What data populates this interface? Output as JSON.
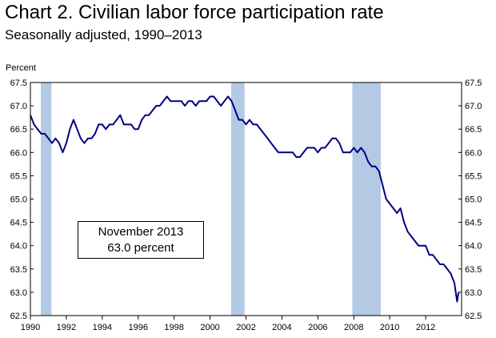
{
  "chart_data": {
    "type": "line",
    "title": "Chart 2.  Civilian labor force participation rate",
    "subtitle": "Seasonally adjusted, 1990–2013",
    "ylabel": "Percent",
    "xlim": [
      1990.0,
      2014.0
    ],
    "ylim": [
      62.5,
      67.5
    ],
    "y_ticks": [
      "67.5",
      "67.0",
      "66.5",
      "66.0",
      "65.5",
      "65.0",
      "64.5",
      "64.0",
      "63.5",
      "63.0",
      "62.5"
    ],
    "x_ticks": [
      "1990",
      "1992",
      "1994",
      "1996",
      "1998",
      "2000",
      "2002",
      "2004",
      "2006",
      "2008",
      "2010",
      "2012"
    ],
    "recessions": [
      [
        1990.58,
        1991.17
      ],
      [
        2001.17,
        2001.92
      ],
      [
        2007.92,
        2009.5
      ]
    ],
    "annotation": {
      "line1": "November 2013",
      "line2": "63.0 percent"
    },
    "series": [
      {
        "name": "Civilian labor force participation rate",
        "color": "#000080",
        "x": [
          1990.0,
          1990.2,
          1990.4,
          1990.6,
          1990.8,
          1991.0,
          1991.2,
          1991.4,
          1991.6,
          1991.8,
          1992.0,
          1992.2,
          1992.4,
          1992.6,
          1992.8,
          1993.0,
          1993.2,
          1993.4,
          1993.6,
          1993.8,
          1994.0,
          1994.2,
          1994.4,
          1994.6,
          1994.8,
          1995.0,
          1995.2,
          1995.4,
          1995.6,
          1995.8,
          1996.0,
          1996.2,
          1996.4,
          1996.6,
          1996.8,
          1997.0,
          1997.2,
          1997.4,
          1997.6,
          1997.8,
          1998.0,
          1998.2,
          1998.4,
          1998.6,
          1998.8,
          1999.0,
          1999.2,
          1999.4,
          1999.6,
          1999.8,
          2000.0,
          2000.2,
          2000.4,
          2000.6,
          2000.8,
          2001.0,
          2001.2,
          2001.4,
          2001.6,
          2001.8,
          2002.0,
          2002.2,
          2002.4,
          2002.6,
          2002.8,
          2003.0,
          2003.2,
          2003.4,
          2003.6,
          2003.8,
          2004.0,
          2004.2,
          2004.4,
          2004.6,
          2004.8,
          2005.0,
          2005.2,
          2005.4,
          2005.6,
          2005.8,
          2006.0,
          2006.2,
          2006.4,
          2006.6,
          2006.8,
          2007.0,
          2007.2,
          2007.4,
          2007.6,
          2007.8,
          2008.0,
          2008.2,
          2008.4,
          2008.6,
          2008.8,
          2009.0,
          2009.2,
          2009.4,
          2009.6,
          2009.8,
          2010.0,
          2010.2,
          2010.4,
          2010.6,
          2010.8,
          2011.0,
          2011.2,
          2011.4,
          2011.6,
          2011.8,
          2012.0,
          2012.2,
          2012.4,
          2012.6,
          2012.8,
          2013.0,
          2013.2,
          2013.4,
          2013.6,
          2013.75,
          2013.83
        ],
        "values": [
          66.8,
          66.6,
          66.5,
          66.4,
          66.4,
          66.3,
          66.2,
          66.3,
          66.2,
          66.0,
          66.2,
          66.5,
          66.7,
          66.5,
          66.3,
          66.2,
          66.3,
          66.3,
          66.4,
          66.6,
          66.6,
          66.5,
          66.6,
          66.6,
          66.7,
          66.8,
          66.6,
          66.6,
          66.6,
          66.5,
          66.5,
          66.7,
          66.8,
          66.8,
          66.9,
          67.0,
          67.0,
          67.1,
          67.2,
          67.1,
          67.1,
          67.1,
          67.1,
          67.0,
          67.1,
          67.1,
          67.0,
          67.1,
          67.1,
          67.1,
          67.2,
          67.2,
          67.1,
          67.0,
          67.1,
          67.2,
          67.1,
          66.9,
          66.7,
          66.7,
          66.6,
          66.7,
          66.6,
          66.6,
          66.5,
          66.4,
          66.3,
          66.2,
          66.1,
          66.0,
          66.0,
          66.0,
          66.0,
          66.0,
          65.9,
          65.9,
          66.0,
          66.1,
          66.1,
          66.1,
          66.0,
          66.1,
          66.1,
          66.2,
          66.3,
          66.3,
          66.2,
          66.0,
          66.0,
          66.0,
          66.1,
          66.0,
          66.1,
          66.0,
          65.8,
          65.7,
          65.7,
          65.6,
          65.3,
          65.0,
          64.9,
          64.8,
          64.7,
          64.8,
          64.5,
          64.3,
          64.2,
          64.1,
          64.0,
          64.0,
          64.0,
          63.8,
          63.8,
          63.7,
          63.6,
          63.6,
          63.5,
          63.4,
          63.2,
          62.8,
          63.0
        ]
      }
    ]
  }
}
